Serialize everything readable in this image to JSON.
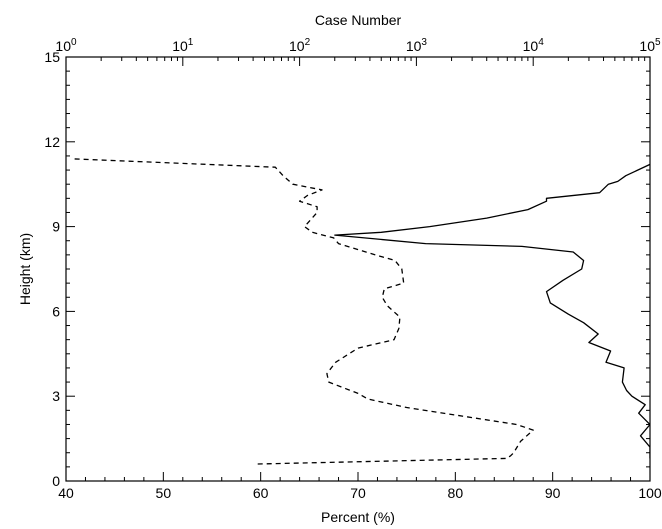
{
  "chart_data": {
    "type": "line",
    "title": "",
    "xlabel": "Percent (%)",
    "x2label": "Case Number",
    "ylabel": "Height (km)",
    "xlim": [
      40,
      100
    ],
    "x2lim": [
      1,
      100000
    ],
    "x2scale": "log",
    "ylim": [
      0,
      15
    ],
    "grid": false,
    "x_ticks": [
      40,
      50,
      60,
      70,
      80,
      90,
      100
    ],
    "x_tick_labels": [
      "40",
      "50",
      "60",
      "70",
      "80",
      "90",
      "100"
    ],
    "y_ticks": [
      0,
      3,
      6,
      9,
      12,
      15
    ],
    "y_tick_labels": [
      "0",
      "3",
      "6",
      "9",
      "12",
      "15"
    ],
    "x2_ticks": [
      {
        "value": 1,
        "base": "10",
        "exp": "0"
      },
      {
        "value": 10,
        "base": "10",
        "exp": "1"
      },
      {
        "value": 100,
        "base": "10",
        "exp": "2"
      },
      {
        "value": 1000,
        "base": "10",
        "exp": "3"
      },
      {
        "value": 10000,
        "base": "10",
        "exp": "4"
      },
      {
        "value": 100000,
        "base": "10",
        "exp": "5"
      }
    ],
    "series": [
      {
        "style": "dashed",
        "axis": "bottom",
        "points": [
          [
            59.7,
            0.6
          ],
          [
            85.3,
            0.8
          ],
          [
            85.7,
            0.9
          ],
          [
            86.0,
            1.0
          ],
          [
            86.7,
            1.4
          ],
          [
            88.0,
            1.8
          ],
          [
            86.3,
            2.0
          ],
          [
            75.0,
            2.6
          ],
          [
            71.0,
            2.9
          ],
          [
            70.0,
            3.1
          ],
          [
            67.0,
            3.5
          ],
          [
            66.8,
            3.8
          ],
          [
            67.7,
            4.2
          ],
          [
            70.0,
            4.7
          ],
          [
            73.7,
            5.0
          ],
          [
            74.2,
            5.4
          ],
          [
            74.3,
            5.8
          ],
          [
            73.0,
            6.2
          ],
          [
            72.5,
            6.5
          ],
          [
            72.7,
            6.8
          ],
          [
            74.7,
            7.0
          ],
          [
            74.5,
            7.5
          ],
          [
            73.8,
            7.8
          ],
          [
            71.8,
            8.0
          ],
          [
            68.0,
            8.4
          ],
          [
            67.5,
            8.6
          ],
          [
            65.3,
            8.8
          ],
          [
            64.5,
            9.0
          ],
          [
            65.8,
            9.5
          ],
          [
            65.8,
            9.7
          ],
          [
            64.0,
            9.9
          ],
          [
            64.8,
            10.1
          ],
          [
            66.3,
            10.3
          ],
          [
            63.3,
            10.5
          ],
          [
            62.3,
            10.8
          ],
          [
            61.5,
            11.1
          ],
          [
            40.5,
            11.4
          ]
        ]
      },
      {
        "style": "solid",
        "axis": "top",
        "points": [
          [
            100000,
            0.8
          ],
          [
            100000,
            1.2
          ],
          [
            83000,
            1.6
          ],
          [
            100000,
            2.0
          ],
          [
            80000,
            2.4
          ],
          [
            91000,
            2.7
          ],
          [
            70000,
            3.0
          ],
          [
            63000,
            3.2
          ],
          [
            58000,
            3.5
          ],
          [
            60000,
            4.0
          ],
          [
            42000,
            4.2
          ],
          [
            46000,
            4.6
          ],
          [
            30000,
            4.9
          ],
          [
            36000,
            5.2
          ],
          [
            27000,
            5.6
          ],
          [
            20000,
            5.9
          ],
          [
            14000,
            6.3
          ],
          [
            13000,
            6.7
          ],
          [
            18000,
            7.1
          ],
          [
            26000,
            7.5
          ],
          [
            27000,
            7.8
          ],
          [
            22000,
            8.1
          ],
          [
            8000,
            8.3
          ],
          [
            1200,
            8.4
          ],
          [
            200,
            8.7
          ],
          [
            500,
            8.8
          ],
          [
            1300,
            9.0
          ],
          [
            4000,
            9.3
          ],
          [
            9000,
            9.6
          ],
          [
            13000,
            9.9
          ],
          [
            13000,
            10.0
          ],
          [
            37000,
            10.2
          ],
          [
            44000,
            10.5
          ],
          [
            53000,
            10.6
          ],
          [
            62000,
            10.8
          ],
          [
            100000,
            11.2
          ]
        ]
      }
    ]
  }
}
